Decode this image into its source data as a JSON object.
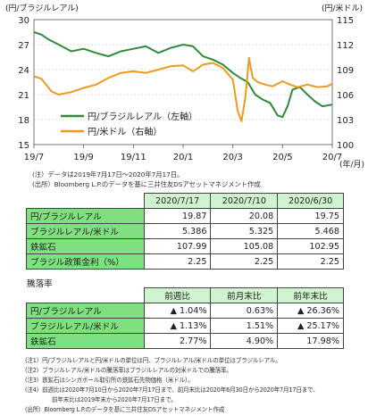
{
  "chart_data": {
    "type": "line",
    "left_axis_unit": "(円/ブラジルレアル)",
    "right_axis_unit": "(円/米ドル)",
    "x_unit": "(年/月)",
    "x_tick_labels": [
      "19/7",
      "19/9",
      "19/11",
      "20/1",
      "20/3",
      "20/5",
      "20/7"
    ],
    "x_ticks": [
      0,
      2,
      4,
      6,
      8,
      10,
      12
    ],
    "left_axis": {
      "min": 15,
      "max": 30,
      "ticks": [
        15,
        18,
        21,
        24,
        27,
        30
      ]
    },
    "right_axis": {
      "min": 100,
      "max": 115,
      "ticks": [
        100,
        103,
        106,
        109,
        112,
        115
      ]
    },
    "legend_position": "lower-left",
    "series": [
      {
        "name": "円/ブラジルレアル（左軸）",
        "axis": "left",
        "color": "#2e8b3a",
        "x": [
          0,
          0.3,
          0.6,
          1.0,
          1.5,
          2.0,
          2.5,
          3.0,
          3.5,
          4.0,
          4.5,
          5.0,
          5.5,
          6.0,
          6.4,
          6.8,
          7.2,
          7.6,
          8.0,
          8.3,
          8.6,
          8.9,
          9.2,
          9.5,
          9.8,
          10.0,
          10.2,
          10.4,
          10.7,
          11.0,
          11.3,
          11.6,
          12.0
        ],
        "y": [
          28.5,
          28.2,
          27.6,
          27.0,
          26.2,
          26.5,
          26.0,
          25.6,
          26.2,
          26.5,
          26.8,
          26.0,
          26.6,
          27.0,
          26.8,
          25.6,
          25.2,
          24.6,
          23.6,
          23.0,
          22.5,
          21.0,
          20.4,
          20.0,
          18.5,
          18.3,
          19.6,
          21.6,
          21.9,
          21.0,
          20.2,
          19.6,
          19.8
        ]
      },
      {
        "name": "円/米ドル（右軸）",
        "axis": "right",
        "color": "#ee9a1f",
        "x": [
          0,
          0.3,
          0.7,
          1.0,
          1.5,
          2.0,
          2.5,
          3.0,
          3.5,
          4.0,
          4.5,
          5.0,
          5.5,
          6.0,
          6.4,
          6.8,
          7.2,
          7.6,
          8.0,
          8.2,
          8.35,
          8.5,
          8.65,
          8.8,
          9.0,
          9.3,
          9.6,
          10.0,
          10.3,
          10.6,
          11.0,
          11.4,
          11.8,
          12.0
        ],
        "y": [
          108.2,
          107.9,
          106.4,
          106.0,
          106.3,
          106.8,
          107.2,
          108.0,
          108.6,
          108.8,
          108.6,
          109.0,
          109.4,
          109.5,
          108.8,
          109.6,
          109.8,
          109.2,
          107.8,
          104.0,
          102.8,
          105.6,
          110.4,
          108.0,
          107.5,
          107.2,
          107.0,
          107.6,
          107.2,
          106.9,
          107.2,
          106.9,
          107.0,
          107.3
        ]
      }
    ]
  },
  "notes": {
    "period": "(注）データは2019年7月17日～2020年7月17日。",
    "source": "(出所）Bloomberg L.P.のデータを基に三井住友DSアセットマネジメント作成"
  },
  "level_table": {
    "headers": [
      "2020/7/17",
      "2020/7/10",
      "2020/6/30"
    ],
    "rows": [
      {
        "label": "円/ブラジルレアル",
        "values": [
          "19.87",
          "20.08",
          "19.75"
        ]
      },
      {
        "label": "ブラジルレアル/米ドル",
        "values": [
          "5.386",
          "5.325",
          "5.468"
        ]
      },
      {
        "label": "鉄鉱石",
        "values": [
          "107.99",
          "105.08",
          "102.95"
        ]
      },
      {
        "label": "ブラジル政策金利（%）",
        "values": [
          "2.25",
          "2.25",
          "2.25"
        ]
      }
    ]
  },
  "rate_table": {
    "title": "騰落率",
    "headers": [
      "前週比",
      "前月末比",
      "前年末比"
    ],
    "rows": [
      {
        "label": "円/ブラジルレアル",
        "values": [
          "▲ 1.04%",
          "0.63%",
          "▲ 26.36%"
        ]
      },
      {
        "label": "ブラジルレアル/米ドル",
        "values": [
          "▲ 1.13%",
          "1.51%",
          "▲ 25.17%"
        ]
      },
      {
        "label": "鉄鉱石",
        "values": [
          "2.77%",
          "4.90%",
          "17.98%"
        ]
      }
    ]
  },
  "footnotes": [
    "(注1）円/ブラジルレアルと円/米ドルの単位は円、ブラジルレアル/米ドルの単位はブラジルレアル。",
    "(注2）ブラジルレアル/米ドルの騰落率はブラジルレアルの対米ドルでの騰落率。",
    "(注3）鉄鉱石はシンガポール取引所の鉄鉱石先物価格（米ドル）。",
    "(注4）前週比は2020年7月10日から2020年7月17日まで、前月末比は2020年6月30日から2020年7月17日まで、",
    "前年末比は2019年末から2020年7月17日まで。",
    "(出所）Bloomberg L.P.のデータを基に三井住友DSアセットマネジメント作成"
  ]
}
